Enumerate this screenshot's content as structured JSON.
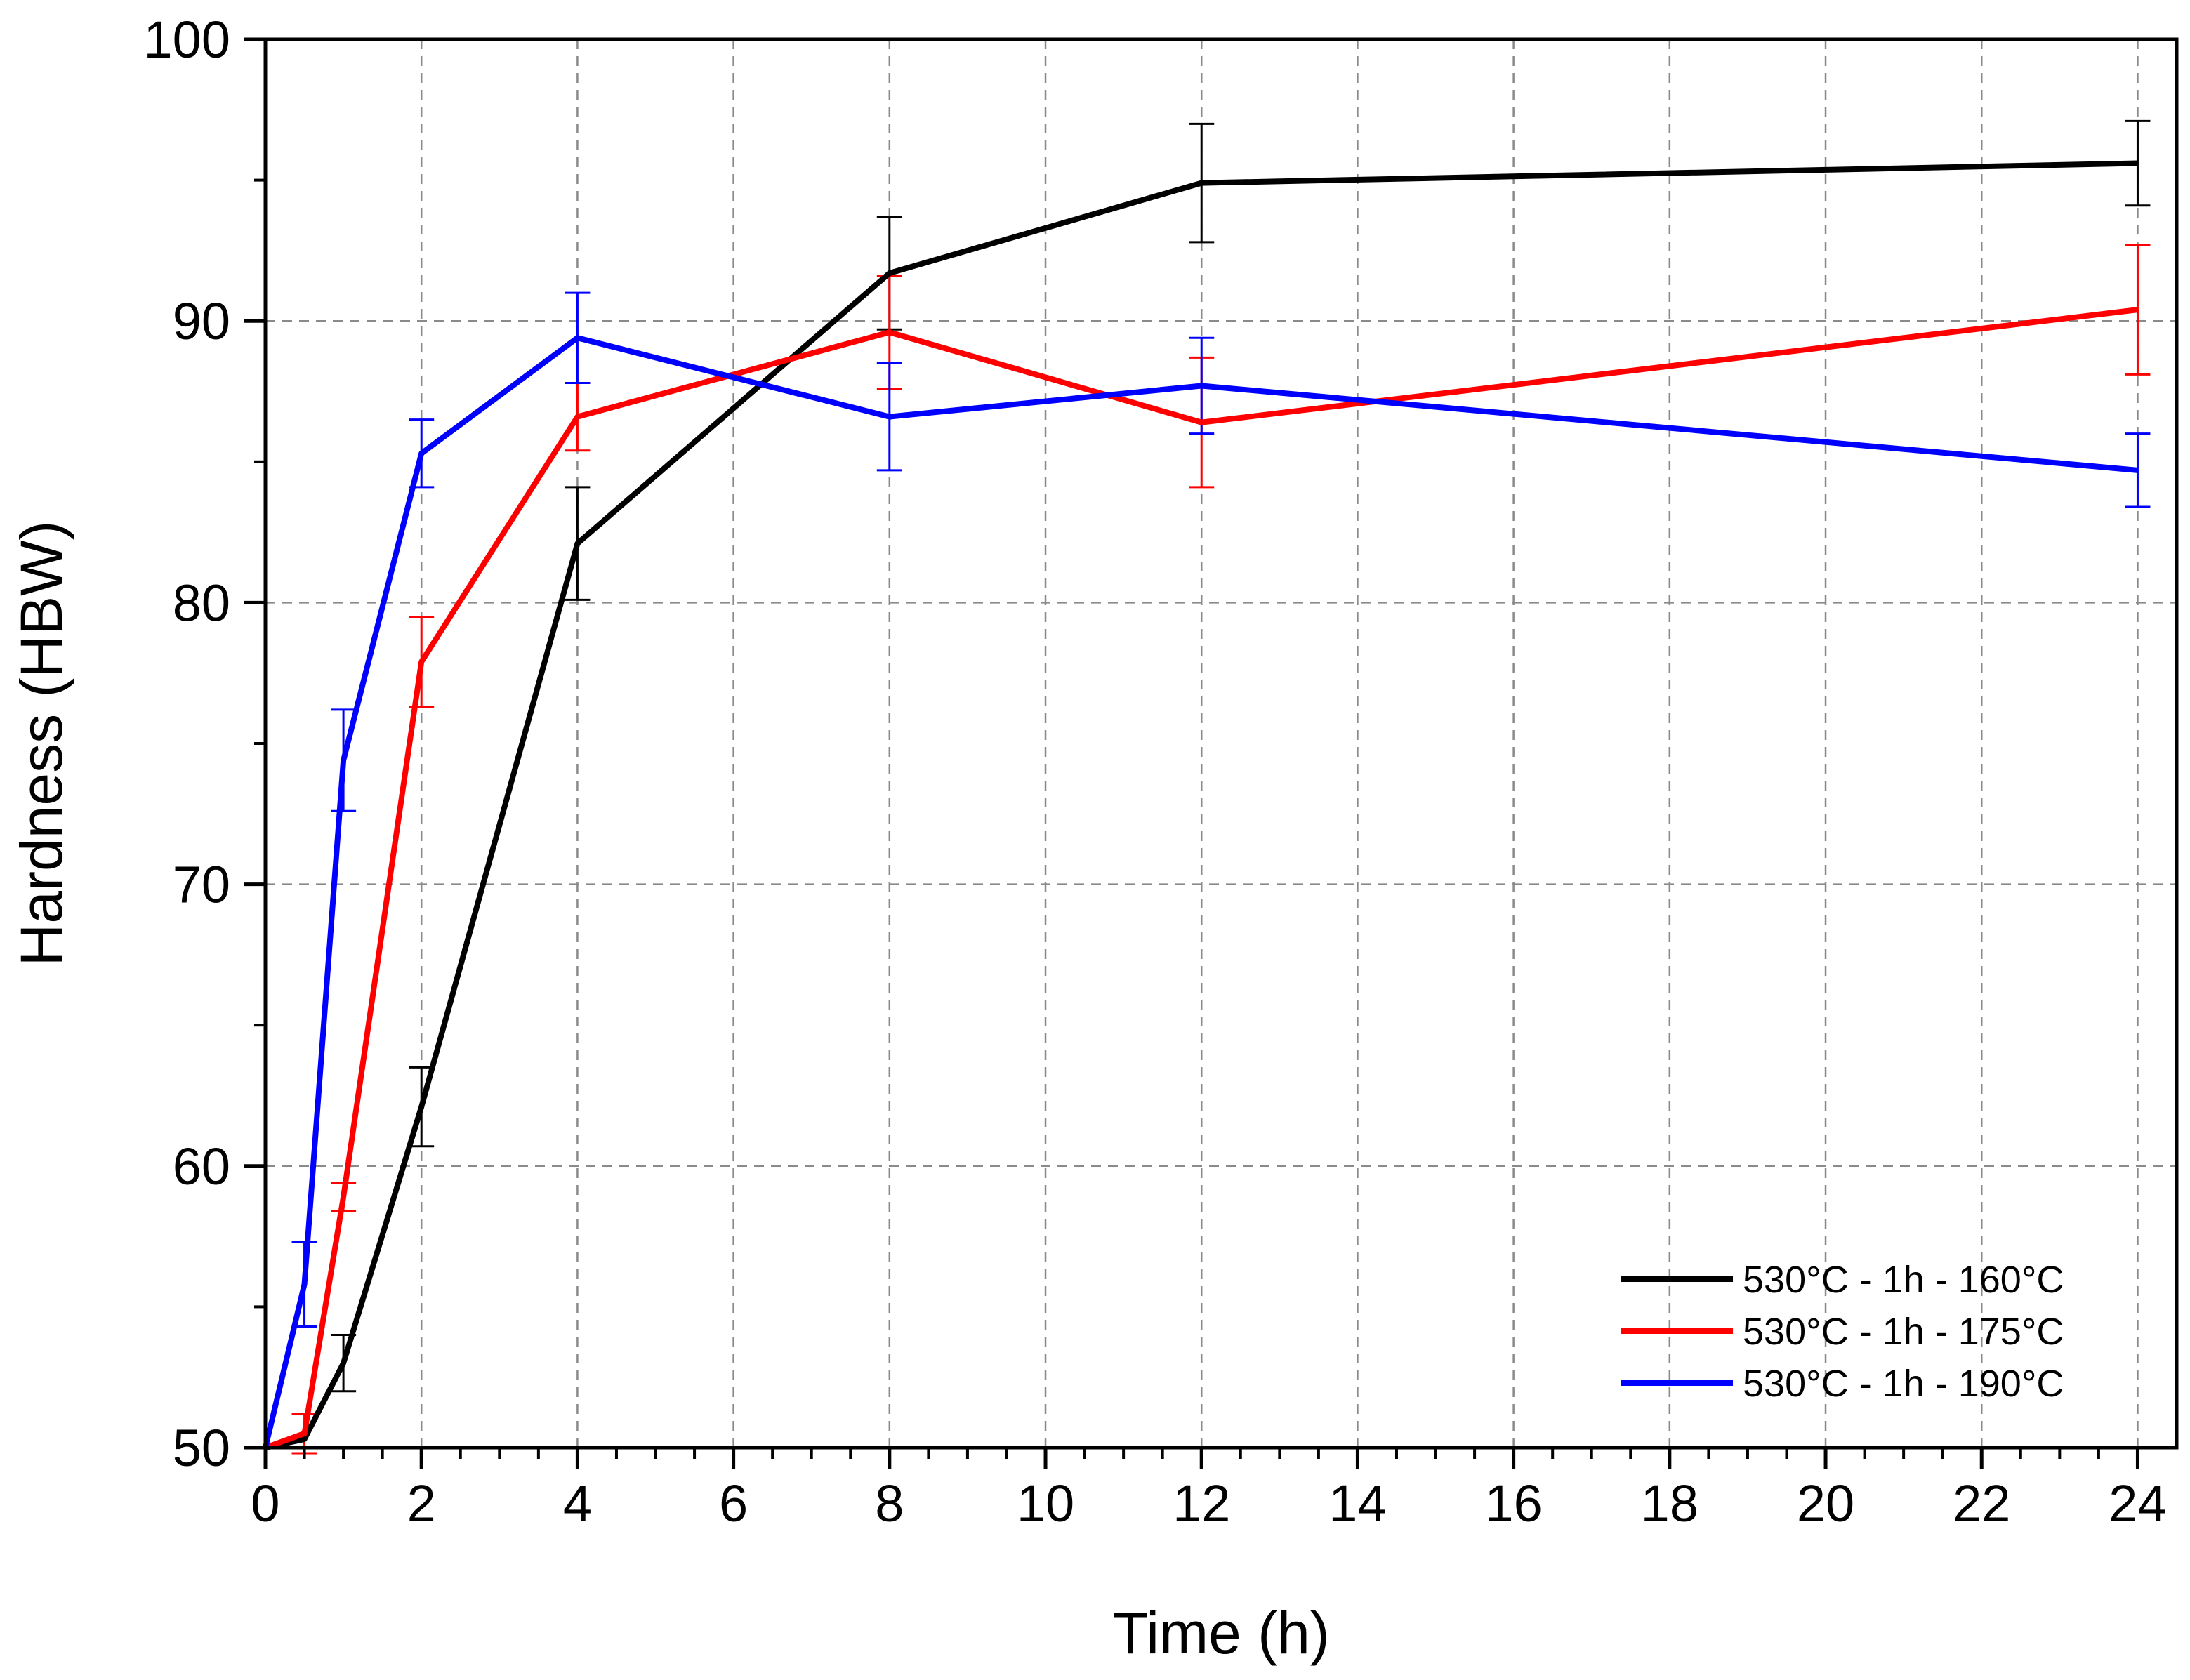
{
  "chart_data": {
    "type": "line",
    "title": "",
    "xlabel": "Time (h)",
    "ylabel": "Hardness (HBW)",
    "xlim": [
      0,
      24.5
    ],
    "ylim": [
      50,
      100
    ],
    "xticks": [
      0,
      2,
      4,
      6,
      8,
      10,
      12,
      14,
      16,
      18,
      20,
      22,
      24
    ],
    "xtick_labels": [
      "0",
      "2",
      "4",
      "6",
      "8",
      "10",
      "12",
      "14",
      "16",
      "18",
      "20",
      "22",
      "24"
    ],
    "yticks": [
      50,
      60,
      70,
      80,
      90,
      100
    ],
    "ytick_labels": [
      "50",
      "60",
      "70",
      "80",
      "90",
      "100"
    ],
    "grid": true,
    "legend_position": "bottom-right",
    "series": [
      {
        "name": "530°C - 1h - 160°C",
        "color": "#000000",
        "x": [
          0,
          0.5,
          1,
          2,
          4,
          8,
          12,
          24
        ],
        "y": [
          50,
          50.3,
          53,
          62.1,
          82.1,
          91.7,
          94.9,
          95.6
        ],
        "err": [
          0,
          0,
          1,
          1.4,
          2,
          2,
          2.1,
          1.5
        ]
      },
      {
        "name": "530°C - 1h - 175°C",
        "color": "#ff0000",
        "x": [
          0,
          0.5,
          1,
          2,
          4,
          8,
          12,
          24
        ],
        "y": [
          50,
          50.5,
          58.9,
          77.9,
          86.6,
          89.6,
          86.4,
          90.4
        ],
        "err": [
          0,
          0.7,
          0.5,
          1.6,
          1.2,
          2,
          2.3,
          2.3
        ]
      },
      {
        "name": "530°C - 1h - 190°C",
        "color": "#0000ff",
        "x": [
          0,
          0.5,
          1,
          2,
          4,
          8,
          12,
          24
        ],
        "y": [
          50,
          55.8,
          74.4,
          85.3,
          89.4,
          86.6,
          87.7,
          84.7
        ],
        "err": [
          0,
          1.5,
          1.8,
          1.2,
          1.6,
          1.9,
          1.7,
          1.3
        ]
      }
    ]
  }
}
